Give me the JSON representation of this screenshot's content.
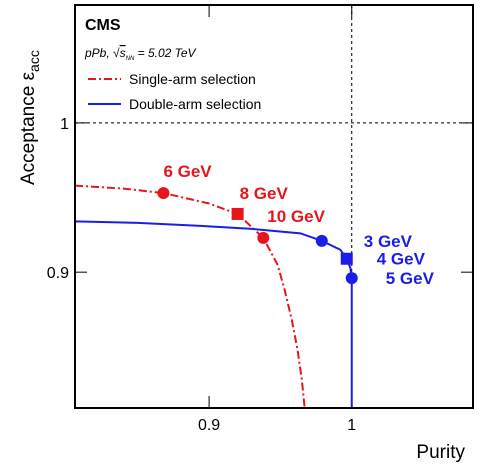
{
  "chart_data": {
    "type": "line",
    "experiment": "CMS",
    "collision_label": [
      "pPb, √",
      "s",
      "NN",
      " = 5.02 TeV"
    ],
    "x_label": "Purity",
    "y_label": [
      "Acceptance ε",
      "acc"
    ],
    "xlim": [
      0.806,
      1.085
    ],
    "ylim": [
      0.809,
      1.079
    ],
    "xticks": [
      0.9,
      1
    ],
    "yticks": [
      0.9,
      1
    ],
    "ref_x": 1,
    "ref_y": 1,
    "series": [
      {
        "name": "Single-arm selection",
        "color": "#e8141c",
        "style": "dashdot",
        "x": [
          0.806,
          0.84,
          0.868,
          0.9,
          0.92,
          0.938,
          0.948,
          0.953,
          0.958,
          0.962,
          0.965,
          0.967
        ],
        "y": [
          0.958,
          0.956,
          0.953,
          0.946,
          0.939,
          0.923,
          0.905,
          0.888,
          0.868,
          0.848,
          0.828,
          0.809
        ],
        "points": {
          "x": [
            0.868,
            0.92,
            0.938
          ],
          "y": [
            0.953,
            0.939,
            0.923
          ],
          "labels": [
            "6 GeV",
            "8 GeV",
            "10 GeV"
          ],
          "shapes": [
            "circle",
            "square",
            "circle"
          ]
        }
      },
      {
        "name": "Double-arm selection",
        "color": "#1a1ee8",
        "style": "solid",
        "x": [
          0.806,
          0.85,
          0.894,
          0.93,
          0.964,
          0.979,
          0.992,
          0.9965,
          0.999,
          1.0,
          1.0,
          1.0
        ],
        "y": [
          0.934,
          0.933,
          0.931,
          0.929,
          0.926,
          0.921,
          0.915,
          0.909,
          0.903,
          0.896,
          0.86,
          0.809
        ],
        "points": {
          "x": [
            0.979,
            0.9965,
            1.0
          ],
          "y": [
            0.921,
            0.909,
            0.896
          ],
          "labels": [
            "3 GeV",
            "4 GeV",
            "5 GeV"
          ],
          "shapes": [
            "circle",
            "square",
            "circle"
          ]
        }
      }
    ]
  }
}
